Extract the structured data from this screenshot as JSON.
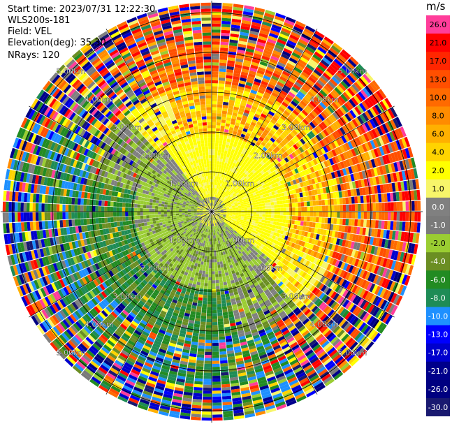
{
  "header": {
    "start_time": "Start time: 2023/07/31 12:22:30",
    "instrument": "WLS200s-181",
    "field": "Field: VEL",
    "elevation": "Elevation(deg): 35.30",
    "nrays": "NRays: 120"
  },
  "chart_data": {
    "type": "heatmap",
    "subtype": "ppi-polar",
    "field": "VEL",
    "unit": "m/s",
    "n_rays": 120,
    "range_rings_km": [
      1.0,
      2.0,
      3.0,
      4.0,
      5.0
    ],
    "range_ring_labels": [
      "1.00km",
      "2.00km",
      "3.00km",
      "4.00km",
      "5.00km"
    ],
    "max_range_km": 5.3,
    "spoke_angles_deg": [
      0,
      30,
      60,
      90,
      120,
      150,
      180,
      210,
      240,
      270,
      300,
      330
    ],
    "colorbar": {
      "ticks": [
        "26.0",
        "21.0",
        "17.0",
        "13.0",
        "10.0",
        "8.0",
        "6.0",
        "4.0",
        "2.0",
        "1.0",
        "0.0",
        "-1.0",
        "-2.0",
        "-4.0",
        "-6.0",
        "-8.0",
        "-10.0",
        "-13.0",
        "-17.0",
        "-21.0",
        "-26.0",
        "-30.0"
      ],
      "colors": [
        "#ff3d9a",
        "#ff0000",
        "#ff2600",
        "#ff4f00",
        "#ff6a00",
        "#ff8c00",
        "#ffb000",
        "#ffd400",
        "#ffff00",
        "#f7f56a",
        "#808080",
        "#7a7a7a",
        "#9acd32",
        "#6b8e23",
        "#228b22",
        "#1e8c56",
        "#1e90ff",
        "#0000ff",
        "#0000cd",
        "#00008b",
        "#000080",
        "#191970"
      ]
    },
    "structure": {
      "near_core": "mixed yellow / grey / yellow-green near radar",
      "inner_ring_north": "yellow, 0 to +2 m/s",
      "inner_ring_south": "yellow-green to green, -2 to -6 m/s",
      "outer_north_east": "orange to red, +6 to +17 m/s",
      "outer_south_west": "green to blue, -6 to -13 m/s",
      "far_range": "noisy, all colours"
    }
  }
}
